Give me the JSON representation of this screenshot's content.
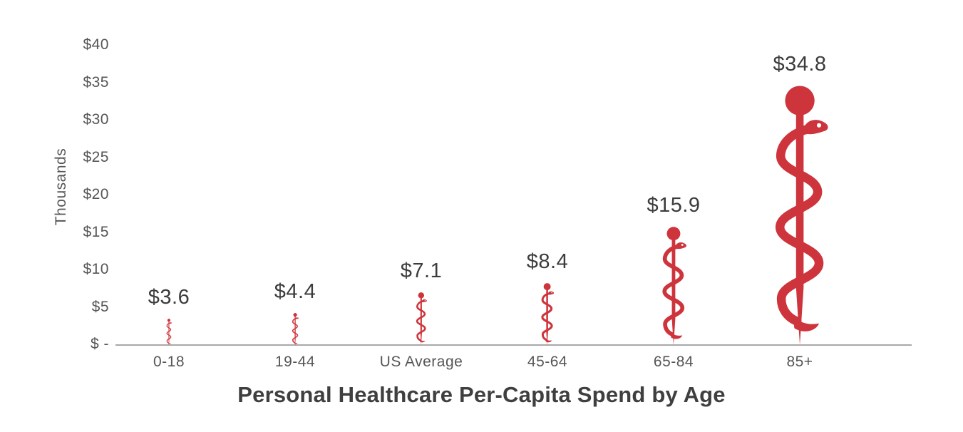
{
  "chart_data": {
    "type": "bar",
    "title": "Personal Healthcare Per-Capita Spend by Age",
    "ylabel": "Thousands",
    "categories": [
      "0-18",
      "19-44",
      "US Average",
      "45-64",
      "65-84",
      "85+"
    ],
    "values": [
      3.6,
      4.4,
      7.1,
      8.4,
      15.9,
      34.8
    ],
    "data_labels": [
      "$3.6",
      "$4.4",
      "$7.1",
      "$8.4",
      "$15.9",
      "$34.8"
    ],
    "y_ticks": [
      {
        "label": "$40",
        "value": 40
      },
      {
        "label": "$35",
        "value": 35
      },
      {
        "label": "$30",
        "value": 30
      },
      {
        "label": "$25",
        "value": 25
      },
      {
        "label": "$20",
        "value": 20
      },
      {
        "label": "$15",
        "value": 15
      },
      {
        "label": "$10",
        "value": 10
      },
      {
        "label": "$5",
        "value": 5
      },
      {
        "label": "$ -",
        "value": 0
      }
    ],
    "ylim": [
      0,
      40
    ],
    "grid": false,
    "legend": false,
    "bar_glyph": "rod-of-asclepius",
    "colors": {
      "glyph": "#CE343C",
      "title_text": "#3F3F3F",
      "axis_text": "#565656",
      "value_label_text": "#3C3C3C",
      "axis_line": "#A8A8A8",
      "background": "#FFFFFF"
    }
  }
}
